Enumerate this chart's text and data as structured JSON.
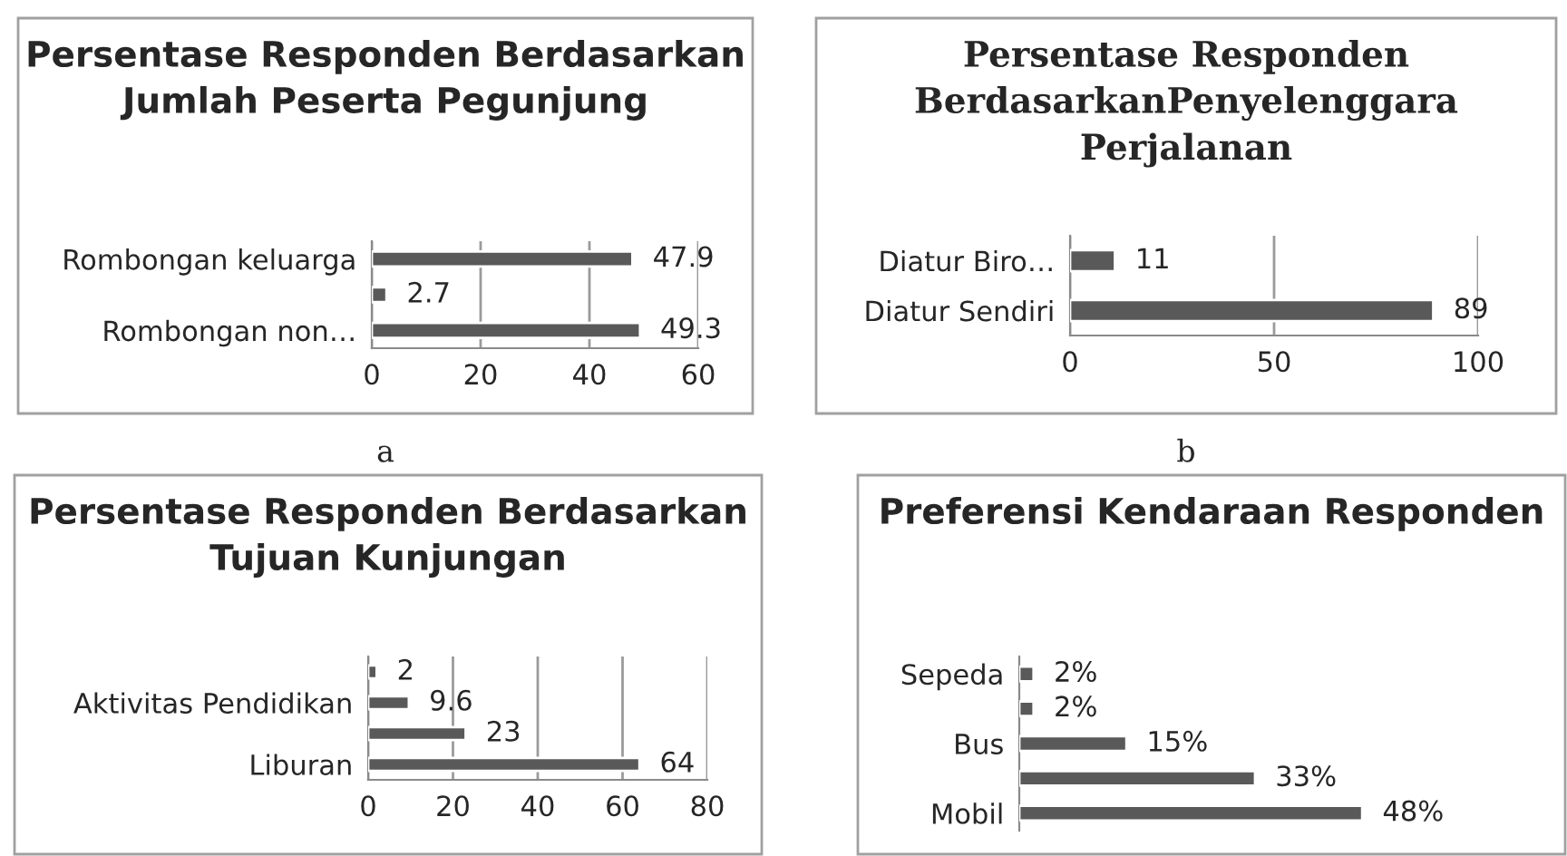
{
  "chart_data": [
    {
      "type": "bar",
      "orientation": "horizontal",
      "title": "Persentase Responden Berdasarkan Jumlah Peserta Pegunjung",
      "categories": [
        "Rombongan keluarga",
        null,
        "Rombongan non…"
      ],
      "values": [
        47.9,
        2.7,
        49.3
      ],
      "color": "#595959",
      "xlim": [
        0,
        60
      ],
      "xticks": [
        0,
        20,
        40,
        60
      ],
      "grid": "x",
      "data_labels": true,
      "annotations": [
        "a"
      ]
    },
    {
      "type": "bar",
      "orientation": "horizontal",
      "title": "Persentase Responden BerdasarkanPenyelenggara Perjalanan",
      "categories": [
        "Diatur Biro…",
        "Diatur Sendiri"
      ],
      "values": [
        11,
        89
      ],
      "color": "#595959",
      "xlim": [
        0,
        100
      ],
      "xticks": [
        0,
        50,
        100
      ],
      "grid": "x",
      "data_labels": true,
      "annotations": [
        "b"
      ]
    },
    {
      "type": "bar",
      "orientation": "horizontal",
      "title": "Persentase Responden Berdasarkan Tujuan Kunjungan",
      "categories": [
        null,
        "Aktivitas Pendidikan",
        null,
        "Liburan"
      ],
      "values": [
        2,
        9.6,
        23,
        64
      ],
      "color": "#595959",
      "xlim": [
        0,
        80
      ],
      "xticks": [
        0,
        20,
        40,
        60,
        80
      ],
      "grid": "x",
      "data_labels": true
    },
    {
      "type": "bar",
      "orientation": "horizontal",
      "title": "Preferensi Kendaraan Responden",
      "categories": [
        "Sepeda",
        null,
        "Bus",
        null,
        "Mobil"
      ],
      "values": [
        2,
        2,
        15,
        33,
        48
      ],
      "color": "#595959",
      "value_labels": [
        "2%",
        "2%",
        "15%",
        "33%",
        "48%"
      ],
      "tick_labels": "y"
    }
  ]
}
